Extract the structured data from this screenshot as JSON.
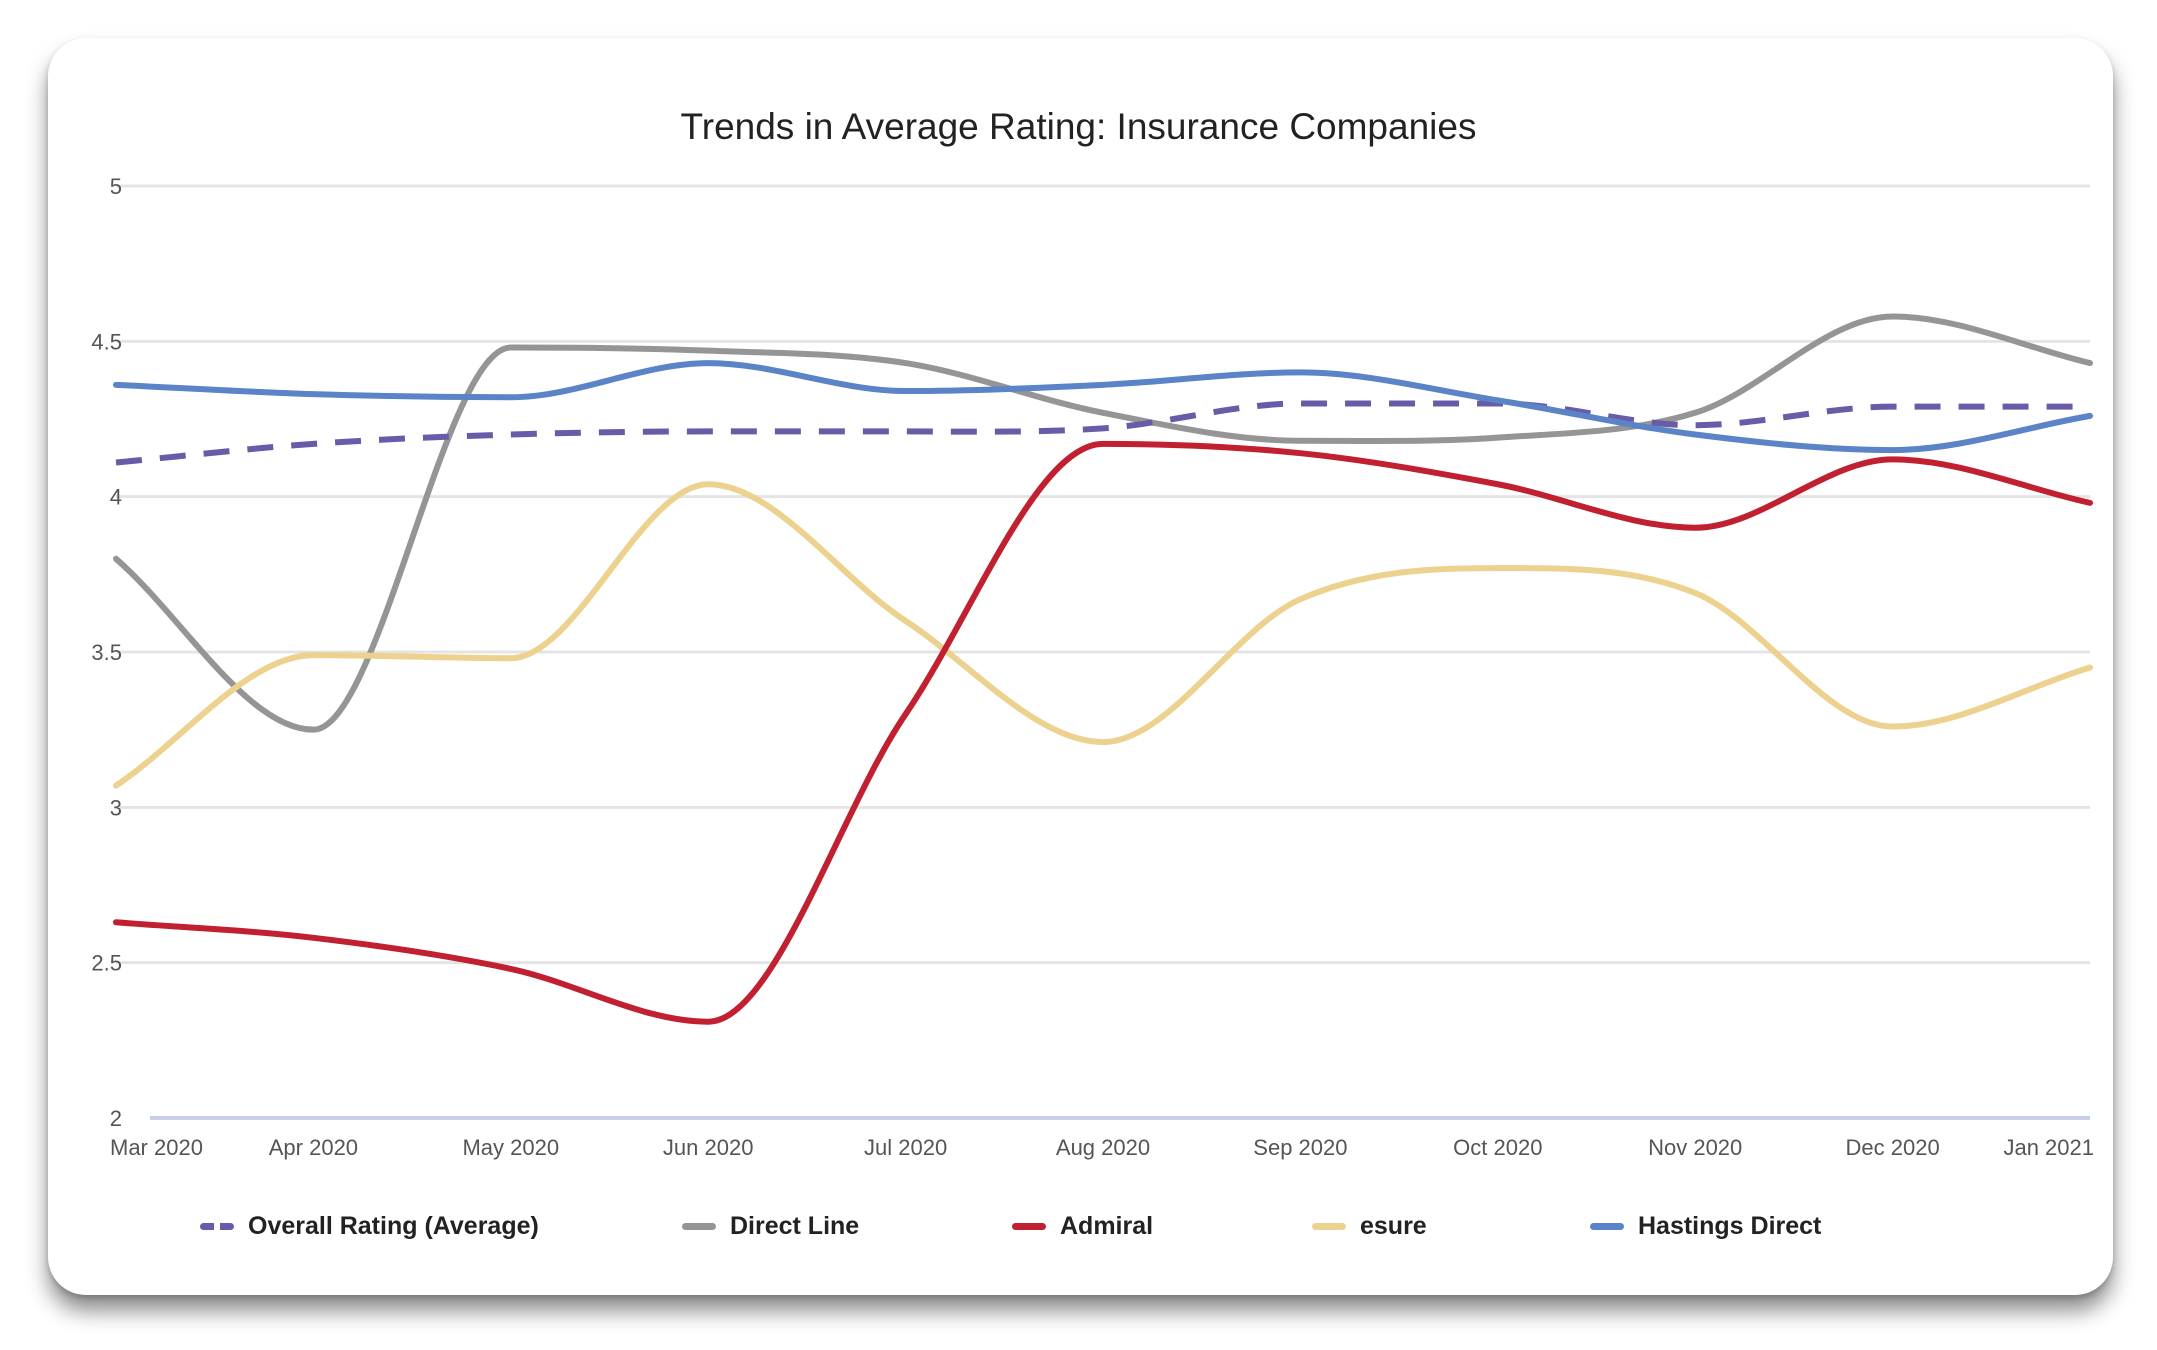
{
  "chart_data": {
    "type": "line",
    "title": "Trends in Average Rating: Insurance Companies",
    "xlabel": "",
    "ylabel": "",
    "categories": [
      "Mar 2020",
      "Apr 2020",
      "May 2020",
      "Jun 2020",
      "Jul 2020",
      "Aug 2020",
      "Sep 2020",
      "Oct 2020",
      "Nov 2020",
      "Dec 2020",
      "Jan 2021"
    ],
    "ylim": [
      2,
      5
    ],
    "yticks": [
      "2",
      "2.5",
      "3",
      "3.5",
      "4",
      "4.5",
      "5"
    ],
    "grid": true,
    "legend_position": "bottom",
    "series": [
      {
        "name": "Overall Rating (Average)",
        "color": "#6a5ba8",
        "dashed": true,
        "values": [
          4.11,
          4.17,
          4.2,
          4.21,
          4.21,
          4.22,
          4.3,
          4.3,
          4.23,
          4.29,
          4.29
        ]
      },
      {
        "name": "Direct Line",
        "color": "#959595",
        "dashed": false,
        "values": [
          3.8,
          3.25,
          4.48,
          4.47,
          4.43,
          4.27,
          4.18,
          4.19,
          4.27,
          4.58,
          4.43
        ]
      },
      {
        "name": "Admiral",
        "color": "#c0202f",
        "dashed": false,
        "values": [
          2.63,
          2.58,
          2.48,
          2.31,
          3.3,
          4.17,
          4.14,
          4.04,
          3.9,
          4.12,
          3.98
        ]
      },
      {
        "name": "esure",
        "color": "#ecd28e",
        "dashed": false,
        "values": [
          3.07,
          3.49,
          3.48,
          4.04,
          3.6,
          3.21,
          3.67,
          3.77,
          3.69,
          3.26,
          3.45
        ]
      },
      {
        "name": "Hastings Direct",
        "color": "#5b83c7",
        "dashed": false,
        "values": [
          4.36,
          4.33,
          4.32,
          4.43,
          4.34,
          4.36,
          4.4,
          4.31,
          4.2,
          4.15,
          4.26
        ]
      }
    ]
  }
}
